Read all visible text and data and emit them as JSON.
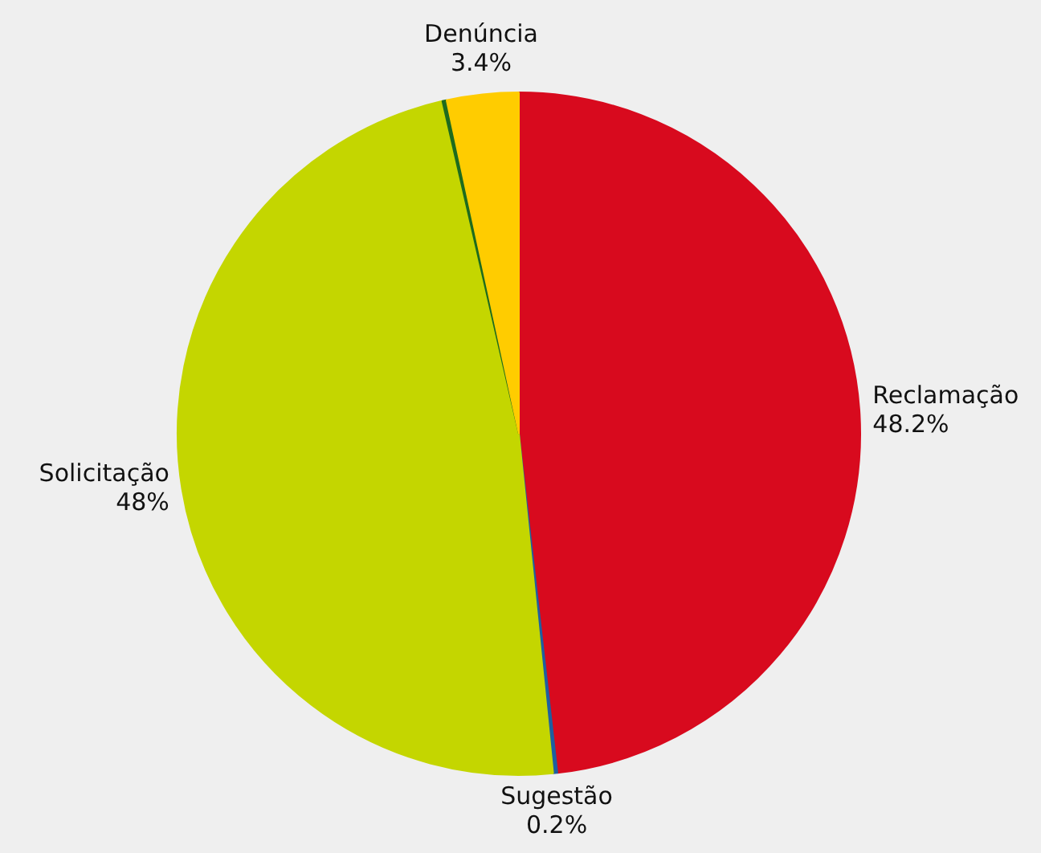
{
  "chart_data": {
    "type": "pie",
    "categories": [
      "Reclamação",
      "Sugestão",
      "Solicitação",
      null,
      "Denúncia"
    ],
    "values": [
      48.2,
      0.2,
      48,
      0.2,
      3.4
    ],
    "value_labels": [
      "48.2%",
      "0.2%",
      "48%",
      null,
      "3.4%"
    ],
    "colors": [
      "#d80a1e",
      "#1f5fa0",
      "#c4d600",
      "#1e6b1e",
      "#ffcc00"
    ],
    "legend": false
  }
}
